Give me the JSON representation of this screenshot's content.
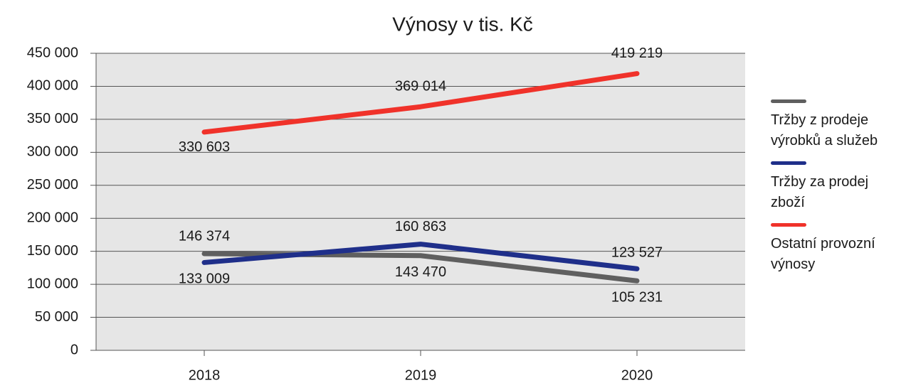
{
  "chart_data": {
    "type": "line",
    "title": "Výnosy v tis. Kč",
    "categories": [
      "2018",
      "2019",
      "2020"
    ],
    "series": [
      {
        "name": "Tržby z prodeje výrobků a služeb",
        "color": "#5f5f5f",
        "values": [
          146374,
          143470,
          105231
        ],
        "value_labels": [
          "146 374",
          "143 470",
          "105 231"
        ]
      },
      {
        "name": "Tržby za prodej zboží",
        "color": "#1f2f8a",
        "values": [
          133009,
          160863,
          123527
        ],
        "value_labels": [
          "133 009",
          "160 863",
          "123 527"
        ]
      },
      {
        "name": "Ostatní provozní výnosy",
        "color": "#f0322a",
        "values": [
          330603,
          369014,
          419219
        ],
        "value_labels": [
          "330 603",
          "369 014",
          "419 219"
        ]
      }
    ],
    "ylim": [
      0,
      450000
    ],
    "yticks": [
      0,
      {
        "value": 50000,
        "label": "50 000"
      },
      {
        "value": 100000,
        "label": "100 000"
      },
      {
        "value": 150000,
        "label": "150 000"
      },
      {
        "value": 200000,
        "label": "200 000"
      },
      {
        "value": 250000,
        "label": "250 000"
      },
      {
        "value": 300000,
        "label": "300 000"
      },
      {
        "value": 350000,
        "label": "350 000"
      },
      {
        "value": 400000,
        "label": "400 000"
      },
      {
        "value": 450000,
        "label": "450 000"
      }
    ],
    "grid": true,
    "legend": "right"
  }
}
